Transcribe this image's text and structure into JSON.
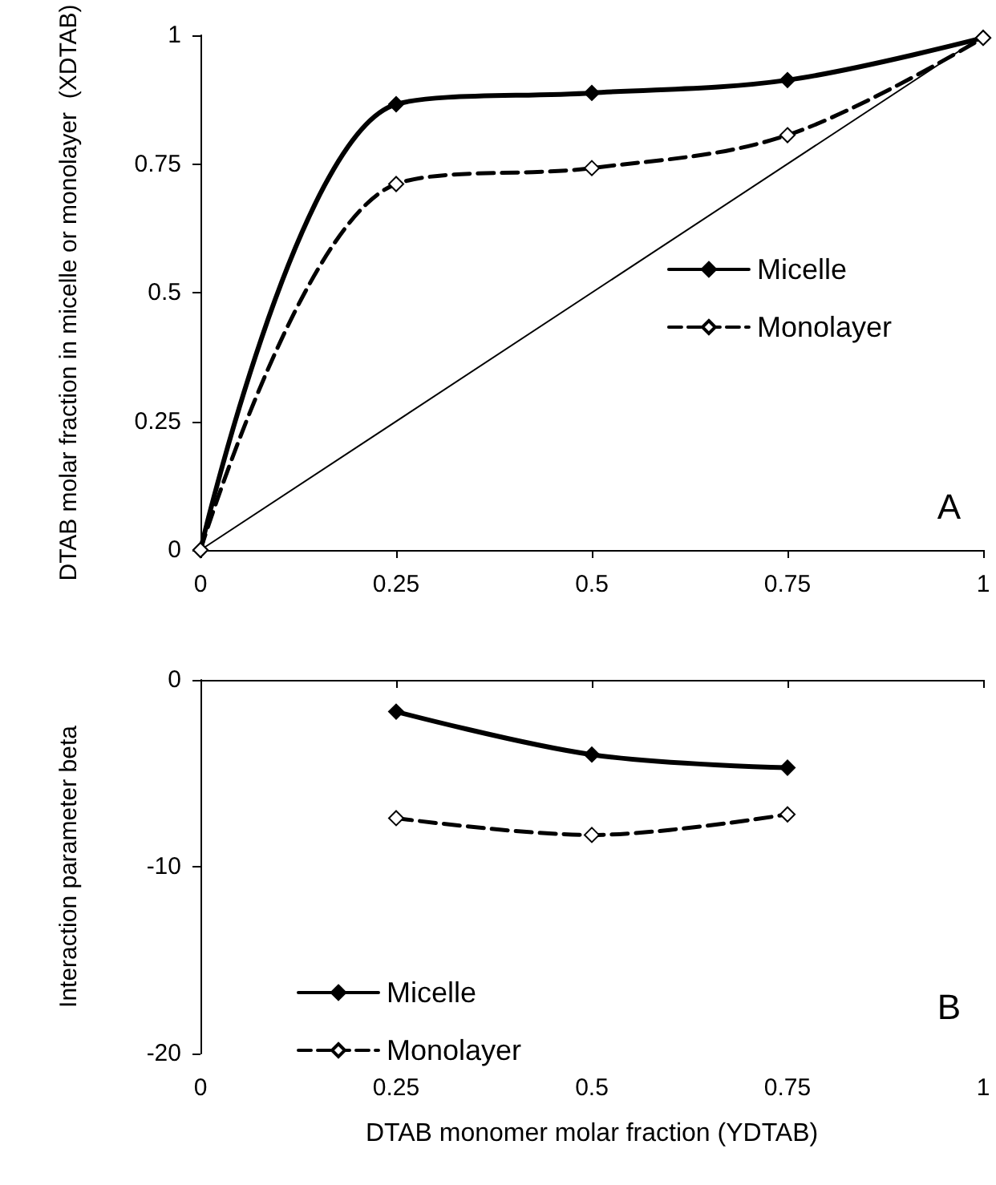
{
  "chart_data": [
    {
      "type": "line",
      "ylabel": "DTAB molar fraction in micelle or monolayer  (XDTAB)",
      "x": [
        0,
        0.25,
        0.5,
        0.75,
        1
      ],
      "xlim": [
        0,
        1
      ],
      "xticks": [
        0,
        0.25,
        0.5,
        0.75,
        1
      ],
      "ylim": [
        0,
        1
      ],
      "yticks": [
        0,
        0.25,
        0.5,
        0.75,
        1
      ],
      "marker": "diamond",
      "legend": "right",
      "grid": false,
      "annotations": [
        "A"
      ],
      "series": [
        {
          "name": "Micelle",
          "color": "#000000",
          "line_style": "solid",
          "values": [
            0,
            0.866,
            0.888,
            0.913,
            0.995
          ]
        },
        {
          "name": "Monolayer",
          "color": "#000000",
          "line_style": "dashed",
          "values": [
            0,
            0.711,
            0.742,
            0.806,
            0.995
          ]
        },
        {
          "color": "#000000",
          "line_style": "solid",
          "marker": "none",
          "x": [
            0,
            1
          ],
          "values": [
            0,
            1
          ]
        }
      ]
    },
    {
      "type": "line",
      "xlabel": "DTAB monomer molar fraction (YDTAB)",
      "ylabel": "Interaction parameter beta",
      "x": [
        0.25,
        0.5,
        0.75
      ],
      "xlim": [
        0,
        1
      ],
      "xticks": [
        0,
        0.25,
        0.5,
        0.75,
        1
      ],
      "ylim": [
        -20,
        0
      ],
      "yticks": [
        -20,
        -10,
        0
      ],
      "marker": "diamond",
      "legend": "bottom left",
      "grid": false,
      "annotations": [
        "B"
      ],
      "series": [
        {
          "name": "Micelle",
          "color": "#000000",
          "line_style": "solid",
          "values": [
            -1.7,
            -4.0,
            -4.7
          ]
        },
        {
          "name": "Monolayer",
          "color": "#000000",
          "line_style": "dashed",
          "values": [
            -7.4,
            -8.3,
            -7.2
          ]
        }
      ]
    }
  ]
}
